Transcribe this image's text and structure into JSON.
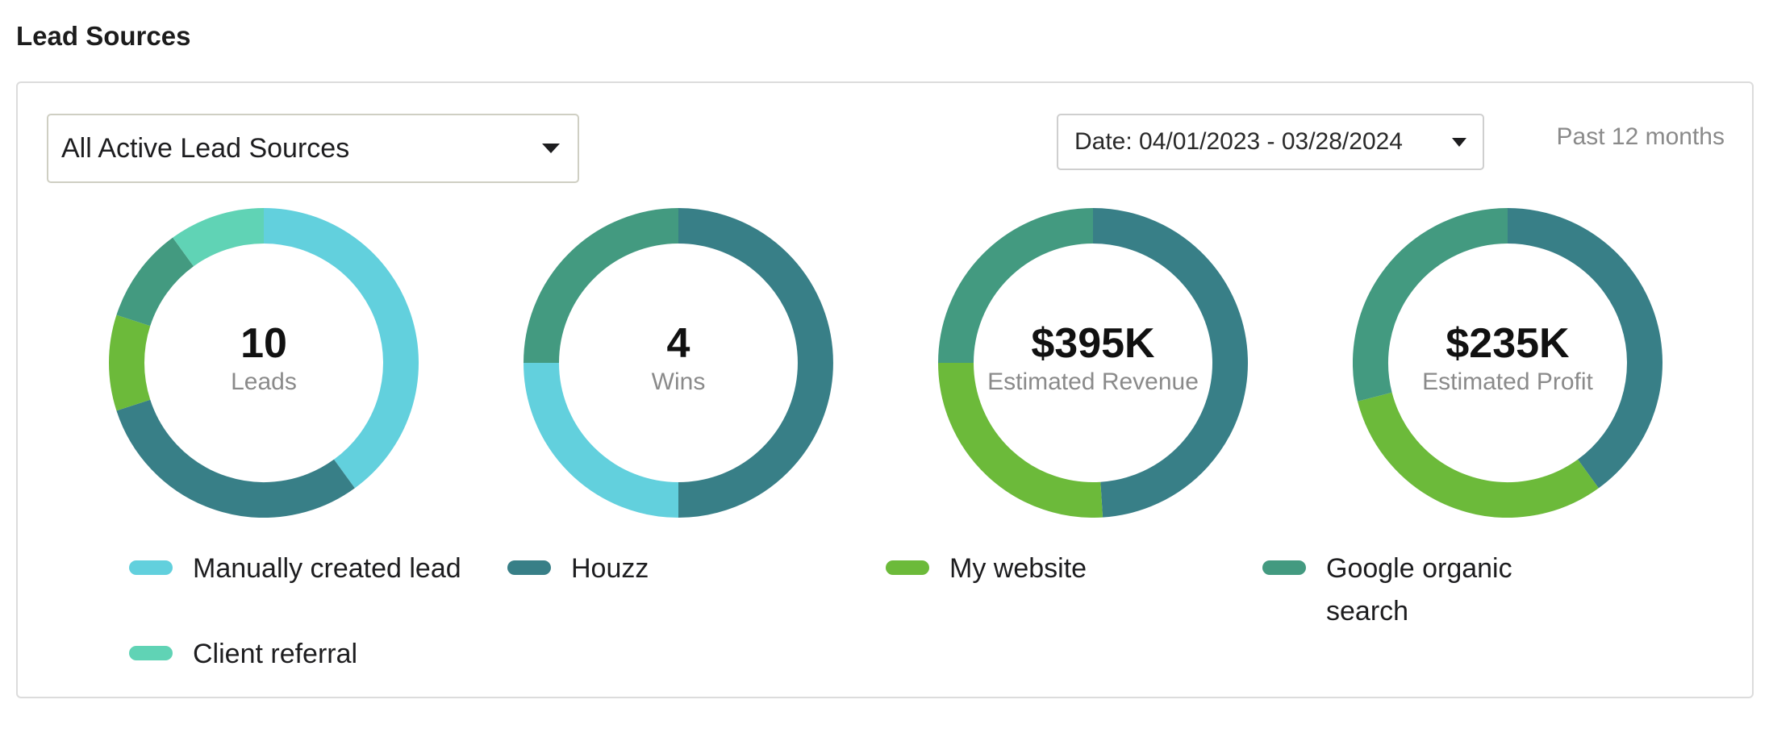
{
  "section_title": "Lead Sources",
  "filters": {
    "source_select_label": "All Active Lead Sources",
    "date_select_label": "Date: 04/01/2023 - 03/28/2024",
    "range_label": "Past 12 months"
  },
  "colors": {
    "Manually created lead": "#62d0dd",
    "Houzz": "#387f87",
    "My website": "#6cba3a",
    "Google organic search": "#439a80",
    "Client referral": "#60d3b5"
  },
  "legend": [
    {
      "label": "Manually created lead"
    },
    {
      "label": "Houzz"
    },
    {
      "label": "My website"
    },
    {
      "label": "Google organic search"
    },
    {
      "label": "Client referral"
    }
  ],
  "chart_data": [
    {
      "type": "pie",
      "value_text": "10",
      "label": "Leads",
      "slices": [
        {
          "name": "Manually created lead",
          "value": 4
        },
        {
          "name": "Houzz",
          "value": 3
        },
        {
          "name": "My website",
          "value": 1
        },
        {
          "name": "Google organic search",
          "value": 1
        },
        {
          "name": "Client referral",
          "value": 1
        }
      ]
    },
    {
      "type": "pie",
      "value_text": "4",
      "label": "Wins",
      "slices": [
        {
          "name": "Houzz",
          "value": 2
        },
        {
          "name": "Manually created lead",
          "value": 1
        },
        {
          "name": "Google organic search",
          "value": 1
        }
      ]
    },
    {
      "type": "pie",
      "value_text": "$395K",
      "label": "Estimated Revenue",
      "slices": [
        {
          "name": "Houzz",
          "value": 0.49
        },
        {
          "name": "My website",
          "value": 0.26
        },
        {
          "name": "Google organic search",
          "value": 0.25
        }
      ]
    },
    {
      "type": "pie",
      "value_text": "$235K",
      "label": "Estimated Profit",
      "slices": [
        {
          "name": "Houzz",
          "value": 0.4
        },
        {
          "name": "My website",
          "value": 0.31
        },
        {
          "name": "Google organic search",
          "value": 0.29
        }
      ]
    }
  ]
}
